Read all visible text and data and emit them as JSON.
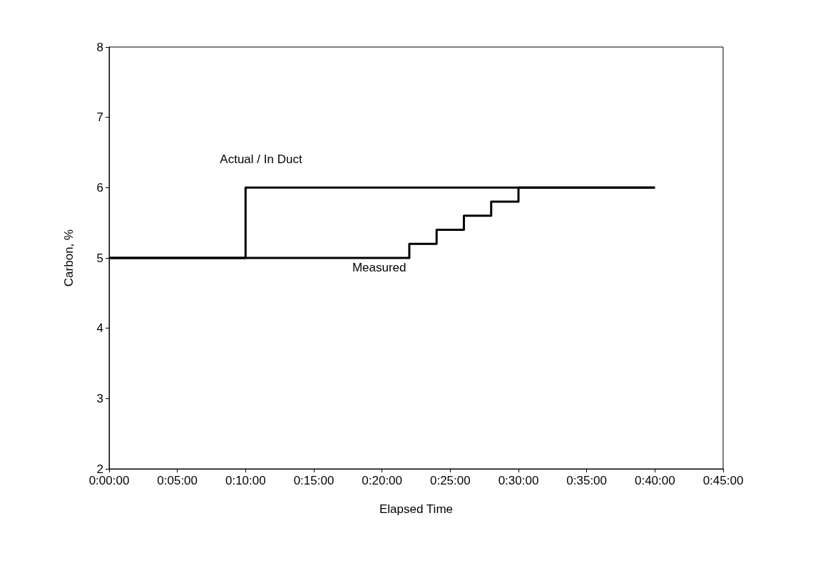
{
  "chart_data": {
    "type": "step",
    "xlabel": "Elapsed Time",
    "ylabel": "Carbon, %",
    "series": [
      {
        "name": "Actual / In Duct",
        "color": "#000000",
        "x": [
          0,
          0.166667,
          0.666667
        ],
        "values": [
          5,
          6,
          6
        ]
      },
      {
        "name": "Measured",
        "color": "#000000",
        "x": [
          0,
          0.366667,
          0.4,
          0.433333,
          0.466667,
          0.5,
          0.666667
        ],
        "values": [
          5,
          5.2,
          5.4,
          5.6,
          5.8,
          6,
          6
        ]
      }
    ],
    "xlim": [
      0,
      0.75
    ],
    "xticks": [
      {
        "value": 0,
        "label": "0:00:00"
      },
      {
        "value": 0.083333,
        "label": "0:05:00"
      },
      {
        "value": 0.166667,
        "label": "0:10:00"
      },
      {
        "value": 0.25,
        "label": "0:15:00"
      },
      {
        "value": 0.333333,
        "label": "0:20:00"
      },
      {
        "value": 0.416667,
        "label": "0:25:00"
      },
      {
        "value": 0.5,
        "label": "0:30:00"
      },
      {
        "value": 0.583333,
        "label": "0:35:00"
      },
      {
        "value": 0.666667,
        "label": "0:40:00"
      },
      {
        "value": 0.75,
        "label": "0:45:00"
      }
    ],
    "ylim": [
      2,
      8
    ],
    "yticks": [
      2,
      3,
      4,
      5,
      6,
      7,
      8
    ],
    "grid": false,
    "marker": "none",
    "line_style": "solid"
  }
}
